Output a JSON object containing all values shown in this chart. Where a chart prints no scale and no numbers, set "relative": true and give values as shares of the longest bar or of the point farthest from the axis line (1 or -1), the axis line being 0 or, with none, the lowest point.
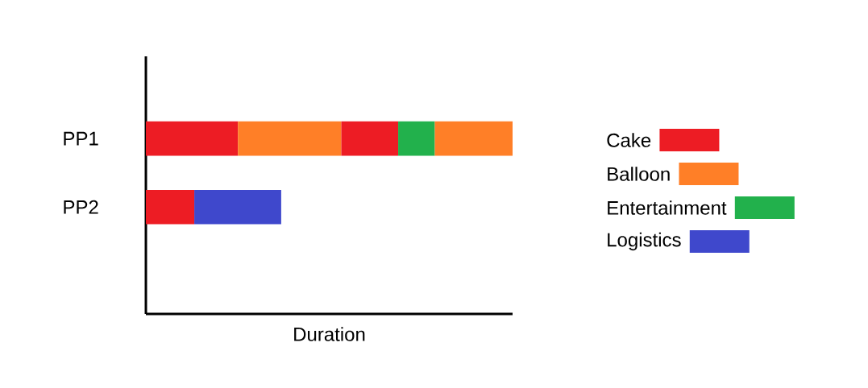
{
  "chart_data": {
    "type": "bar",
    "orientation": "horizontal",
    "stacked": true,
    "relative": true,
    "xlabel": "Duration",
    "categories": [
      "PP1",
      "PP2"
    ],
    "legend": "right",
    "series": [
      {
        "name": "Cake",
        "color": "#ed1c24",
        "values": [
          0.251,
          0.132
        ]
      },
      {
        "name": "Balloon",
        "color": "#ff7f27",
        "values": [
          0.282,
          null
        ]
      },
      {
        "color": "#ed1c24",
        "values": [
          0.155,
          null
        ]
      },
      {
        "name": "Entertainment",
        "color": "#22b14c",
        "values": [
          0.1,
          null
        ]
      },
      {
        "color": "#ff7f27",
        "values": [
          0.212,
          null
        ]
      },
      {
        "name": "Logistics",
        "color": "#3f48cc",
        "values": [
          null,
          0.237
        ]
      }
    ]
  }
}
